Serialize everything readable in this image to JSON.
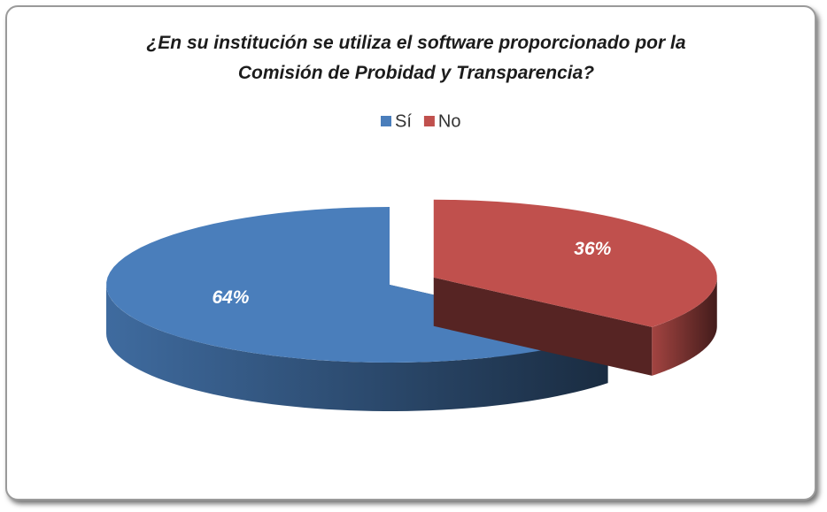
{
  "chart_data": {
    "type": "pie3d",
    "title": "¿En su institución se utiliza el software proporcionado por la Comisión de Probidad y Transparencia?",
    "categories": [
      "Sí",
      "No"
    ],
    "values": [
      64,
      36
    ],
    "value_labels": [
      "64%",
      "36%"
    ],
    "colors": [
      "#4a7ebb",
      "#c0504d"
    ],
    "legend": "top"
  }
}
